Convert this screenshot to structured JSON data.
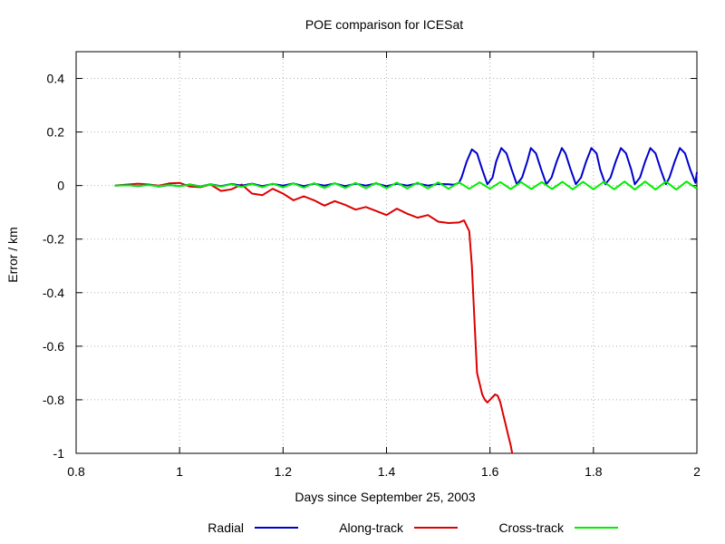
{
  "chart_data": {
    "type": "line",
    "title": "POE comparison for ICESat",
    "xlabel": "Days since September 25, 2003",
    "ylabel": "Error / km",
    "xlim": [
      0.8,
      2.0
    ],
    "ylim": [
      -1.0,
      0.5
    ],
    "xticks": [
      "0.8",
      "1",
      "1.2",
      "1.4",
      "1.6",
      "1.8",
      "2"
    ],
    "xtick_values": [
      0.8,
      1.0,
      1.2,
      1.4,
      1.6,
      1.8,
      2.0
    ],
    "yticks": [
      "-1",
      "-0.8",
      "-0.6",
      "-0.4",
      "-0.2",
      "0",
      "0.2",
      "0.4"
    ],
    "ytick_values": [
      -1.0,
      -0.8,
      -0.6,
      -0.4,
      -0.2,
      0.0,
      0.2,
      0.4
    ],
    "grid": true,
    "legend_position": "bottom",
    "series": [
      {
        "name": "Radial",
        "color": "#0000cc",
        "x": [
          0.875,
          0.9,
          0.92,
          0.94,
          0.96,
          0.98,
          1.0,
          1.02,
          1.04,
          1.06,
          1.08,
          1.1,
          1.12,
          1.14,
          1.16,
          1.18,
          1.2,
          1.22,
          1.24,
          1.26,
          1.28,
          1.3,
          1.32,
          1.34,
          1.36,
          1.38,
          1.4,
          1.42,
          1.44,
          1.46,
          1.48,
          1.5,
          1.52,
          1.53,
          1.54,
          1.545,
          1.555,
          1.565,
          1.575,
          1.585,
          1.595,
          1.605,
          1.612,
          1.622,
          1.632,
          1.642,
          1.652,
          1.662,
          1.672,
          1.679,
          1.689,
          1.699,
          1.709,
          1.719,
          1.729,
          1.739,
          1.746,
          1.756,
          1.766,
          1.776,
          1.786,
          1.796,
          1.806,
          1.813,
          1.823,
          1.833,
          1.843,
          1.853,
          1.863,
          1.873,
          1.88,
          1.89,
          1.9,
          1.91,
          1.92,
          1.93,
          1.94,
          1.947,
          1.957,
          1.967,
          1.977,
          1.987,
          1.997,
          2.0
        ],
        "y": [
          0.0,
          0.002,
          -0.002,
          0.003,
          -0.003,
          0.002,
          -0.002,
          0.004,
          -0.003,
          0.005,
          -0.002,
          0.006,
          0.0,
          0.007,
          -0.002,
          0.006,
          0.0,
          0.008,
          -0.002,
          0.007,
          0.0,
          0.008,
          -0.002,
          0.007,
          0.0,
          0.008,
          -0.002,
          0.007,
          0.0,
          0.008,
          0.0,
          0.006,
          0.005,
          0.003,
          0.01,
          0.03,
          0.09,
          0.135,
          0.12,
          0.06,
          0.005,
          0.03,
          0.09,
          0.14,
          0.12,
          0.06,
          0.005,
          0.03,
          0.09,
          0.14,
          0.12,
          0.06,
          0.005,
          0.03,
          0.09,
          0.14,
          0.12,
          0.06,
          0.005,
          0.03,
          0.09,
          0.14,
          0.12,
          0.06,
          0.005,
          0.03,
          0.09,
          0.14,
          0.12,
          0.06,
          0.005,
          0.03,
          0.09,
          0.14,
          0.12,
          0.06,
          0.005,
          0.03,
          0.09,
          0.14,
          0.12,
          0.06,
          0.01,
          0.05
        ]
      },
      {
        "name": "Along-track",
        "color": "#dd0000",
        "x": [
          0.875,
          0.9,
          0.92,
          0.94,
          0.96,
          0.98,
          1.0,
          1.02,
          1.04,
          1.06,
          1.08,
          1.1,
          1.12,
          1.14,
          1.16,
          1.18,
          1.2,
          1.22,
          1.24,
          1.26,
          1.28,
          1.3,
          1.32,
          1.34,
          1.36,
          1.38,
          1.4,
          1.42,
          1.44,
          1.46,
          1.48,
          1.5,
          1.52,
          1.54,
          1.55,
          1.56,
          1.565,
          1.57,
          1.575,
          1.58,
          1.585,
          1.59,
          1.595,
          1.6,
          1.605,
          1.61,
          1.615,
          1.62,
          1.625,
          1.63,
          1.635,
          1.64,
          1.643
        ],
        "y": [
          0.0,
          0.004,
          0.007,
          0.004,
          0.0,
          0.008,
          0.01,
          -0.004,
          -0.006,
          0.004,
          -0.02,
          -0.014,
          0.004,
          -0.03,
          -0.036,
          -0.012,
          -0.03,
          -0.055,
          -0.04,
          -0.055,
          -0.075,
          -0.058,
          -0.072,
          -0.09,
          -0.08,
          -0.095,
          -0.11,
          -0.086,
          -0.105,
          -0.12,
          -0.11,
          -0.135,
          -0.14,
          -0.138,
          -0.13,
          -0.17,
          -0.3,
          -0.5,
          -0.7,
          -0.74,
          -0.78,
          -0.8,
          -0.81,
          -0.8,
          -0.79,
          -0.78,
          -0.785,
          -0.81,
          -0.85,
          -0.89,
          -0.93,
          -0.97,
          -1.0
        ]
      },
      {
        "name": "Cross-track",
        "color": "#00ee00",
        "x": [
          0.875,
          0.9,
          0.92,
          0.94,
          0.96,
          0.98,
          1.0,
          1.02,
          1.04,
          1.06,
          1.08,
          1.1,
          1.12,
          1.14,
          1.16,
          1.18,
          1.2,
          1.22,
          1.24,
          1.26,
          1.28,
          1.3,
          1.32,
          1.34,
          1.36,
          1.38,
          1.4,
          1.42,
          1.44,
          1.46,
          1.48,
          1.5,
          1.52,
          1.54,
          1.56,
          1.58,
          1.6,
          1.62,
          1.64,
          1.66,
          1.68,
          1.7,
          1.72,
          1.74,
          1.76,
          1.78,
          1.8,
          1.82,
          1.84,
          1.86,
          1.88,
          1.9,
          1.92,
          1.94,
          1.96,
          1.98,
          2.0
        ],
        "y": [
          0.0,
          0.001,
          -0.001,
          0.002,
          -0.002,
          0.002,
          -0.002,
          0.003,
          -0.003,
          0.004,
          -0.004,
          0.005,
          -0.005,
          0.006,
          -0.006,
          0.007,
          -0.007,
          0.008,
          -0.008,
          0.009,
          -0.009,
          0.009,
          -0.009,
          0.01,
          -0.01,
          0.01,
          -0.01,
          0.011,
          -0.011,
          0.011,
          -0.011,
          0.012,
          -0.012,
          0.012,
          -0.012,
          0.012,
          -0.012,
          0.013,
          -0.013,
          0.013,
          -0.013,
          0.013,
          -0.013,
          0.014,
          -0.014,
          0.014,
          -0.014,
          0.014,
          -0.014,
          0.015,
          -0.015,
          0.015,
          -0.015,
          0.015,
          -0.015,
          0.015,
          -0.012
        ]
      }
    ]
  }
}
